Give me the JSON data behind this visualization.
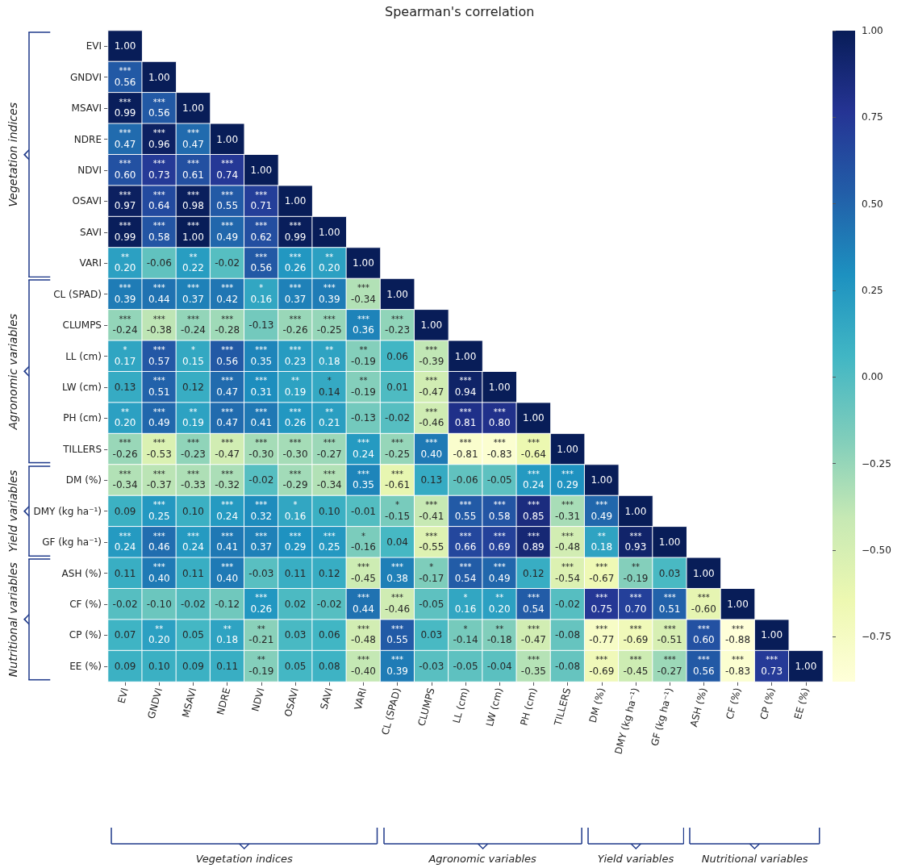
{
  "chart_data": {
    "type": "heatmap",
    "title": "Spearman's correlation",
    "categories": [
      "EVI",
      "GNDVI",
      "MSAVI",
      "NDRE",
      "NDVI",
      "OSAVI",
      "SAVI",
      "VARI",
      "CL (SPAD)",
      "CLUMPS",
      "LL (cm)",
      "LW (cm)",
      "PH (cm)",
      "TILLERS",
      "DM (%)",
      "DMY (kg ha⁻¹)",
      "GF (kg ha⁻¹)",
      "ASH (%)",
      "CF (%)",
      "CP (%)",
      "EE (%)"
    ],
    "y_categories": [
      "EVI",
      "GNDVI",
      "MSAVI",
      "NDRE",
      "NDVI",
      "OSAVI",
      "SAVI",
      "VARI",
      "CL (SPAD)",
      "CLUMPS",
      "LL (cm)",
      "LW (cm)",
      "PH (cm)",
      "TILLERS",
      "DM (%)",
      "DMY (kg ha⁻¹)",
      "GF (kg ha⁻¹)",
      "ASH (%)",
      "CF (%)",
      "CP (%)",
      "EE (%)"
    ],
    "cells": [
      [
        1.0,
        null,
        null,
        null,
        null,
        null,
        null,
        null,
        null,
        null,
        null,
        null,
        null,
        null,
        null,
        null,
        null,
        null,
        null,
        null,
        null
      ],
      [
        0.56,
        1.0,
        null,
        null,
        null,
        null,
        null,
        null,
        null,
        null,
        null,
        null,
        null,
        null,
        null,
        null,
        null,
        null,
        null,
        null,
        null
      ],
      [
        0.99,
        0.56,
        1.0,
        null,
        null,
        null,
        null,
        null,
        null,
        null,
        null,
        null,
        null,
        null,
        null,
        null,
        null,
        null,
        null,
        null,
        null
      ],
      [
        0.47,
        0.96,
        0.47,
        1.0,
        null,
        null,
        null,
        null,
        null,
        null,
        null,
        null,
        null,
        null,
        null,
        null,
        null,
        null,
        null,
        null,
        null
      ],
      [
        0.6,
        0.73,
        0.61,
        0.74,
        1.0,
        null,
        null,
        null,
        null,
        null,
        null,
        null,
        null,
        null,
        null,
        null,
        null,
        null,
        null,
        null,
        null
      ],
      [
        0.97,
        0.64,
        0.98,
        0.55,
        0.71,
        1.0,
        null,
        null,
        null,
        null,
        null,
        null,
        null,
        null,
        null,
        null,
        null,
        null,
        null,
        null,
        null
      ],
      [
        0.99,
        0.58,
        1.0,
        0.49,
        0.62,
        0.99,
        1.0,
        null,
        null,
        null,
        null,
        null,
        null,
        null,
        null,
        null,
        null,
        null,
        null,
        null,
        null
      ],
      [
        0.2,
        -0.06,
        0.22,
        -0.02,
        0.56,
        0.26,
        0.2,
        1.0,
        null,
        null,
        null,
        null,
        null,
        null,
        null,
        null,
        null,
        null,
        null,
        null,
        null
      ],
      [
        0.39,
        0.44,
        0.37,
        0.42,
        0.16,
        0.37,
        0.39,
        -0.34,
        1.0,
        null,
        null,
        null,
        null,
        null,
        null,
        null,
        null,
        null,
        null,
        null,
        null
      ],
      [
        -0.24,
        -0.38,
        -0.24,
        -0.28,
        -0.13,
        -0.26,
        -0.25,
        0.36,
        -0.23,
        1.0,
        null,
        null,
        null,
        null,
        null,
        null,
        null,
        null,
        null,
        null,
        null
      ],
      [
        0.17,
        0.57,
        0.15,
        0.56,
        0.35,
        0.23,
        0.18,
        -0.19,
        0.06,
        -0.39,
        1.0,
        null,
        null,
        null,
        null,
        null,
        null,
        null,
        null,
        null,
        null
      ],
      [
        0.13,
        0.51,
        0.12,
        0.47,
        0.31,
        0.19,
        0.14,
        -0.19,
        0.01,
        -0.47,
        0.94,
        1.0,
        null,
        null,
        null,
        null,
        null,
        null,
        null,
        null,
        null
      ],
      [
        0.2,
        0.49,
        0.19,
        0.47,
        0.41,
        0.26,
        0.21,
        -0.13,
        -0.02,
        -0.46,
        0.81,
        0.8,
        1.0,
        null,
        null,
        null,
        null,
        null,
        null,
        null,
        null
      ],
      [
        -0.26,
        -0.53,
        -0.23,
        -0.47,
        -0.3,
        -0.3,
        -0.27,
        0.24,
        -0.25,
        0.4,
        -0.81,
        -0.83,
        -0.64,
        1.0,
        null,
        null,
        null,
        null,
        null,
        null,
        null
      ],
      [
        -0.34,
        -0.37,
        -0.33,
        -0.32,
        -0.02,
        -0.29,
        -0.34,
        0.35,
        -0.61,
        0.13,
        -0.06,
        -0.05,
        0.24,
        0.29,
        1.0,
        null,
        null,
        null,
        null,
        null,
        null
      ],
      [
        0.09,
        0.25,
        0.1,
        0.24,
        0.32,
        0.16,
        0.1,
        -0.01,
        -0.15,
        -0.41,
        0.55,
        0.58,
        0.85,
        -0.31,
        0.49,
        1.0,
        null,
        null,
        null,
        null,
        null
      ],
      [
        0.24,
        0.46,
        0.24,
        0.41,
        0.37,
        0.29,
        0.25,
        -0.16,
        0.04,
        -0.55,
        0.66,
        0.69,
        0.89,
        -0.48,
        0.18,
        0.93,
        1.0,
        null,
        null,
        null,
        null
      ],
      [
        0.11,
        0.4,
        0.11,
        0.4,
        -0.03,
        0.11,
        0.12,
        -0.45,
        0.38,
        -0.17,
        0.54,
        0.49,
        0.12,
        -0.54,
        -0.67,
        -0.19,
        0.03,
        1.0,
        null,
        null,
        null
      ],
      [
        -0.02,
        -0.1,
        -0.02,
        -0.12,
        0.26,
        0.02,
        -0.02,
        0.44,
        -0.46,
        -0.05,
        0.16,
        0.2,
        0.54,
        -0.02,
        0.75,
        0.7,
        0.51,
        -0.6,
        1.0,
        null,
        null
      ],
      [
        0.07,
        0.2,
        0.05,
        0.18,
        -0.21,
        0.03,
        0.06,
        -0.48,
        0.55,
        0.03,
        -0.14,
        -0.18,
        -0.47,
        -0.08,
        -0.77,
        -0.69,
        -0.51,
        0.6,
        -0.88,
        1.0,
        null
      ],
      [
        0.09,
        0.1,
        0.09,
        0.11,
        -0.19,
        0.05,
        0.08,
        -0.4,
        0.39,
        -0.03,
        -0.05,
        -0.04,
        -0.35,
        -0.08,
        -0.69,
        -0.45,
        -0.27,
        0.56,
        -0.83,
        0.73,
        1.0
      ]
    ],
    "cell_labels": [
      [
        "1.00",
        null,
        null,
        null,
        null,
        null,
        null,
        null,
        null,
        null,
        null,
        null,
        null,
        null,
        null,
        null,
        null,
        null,
        null,
        null,
        null
      ],
      [
        "***\n0.56",
        "1.00",
        null,
        null,
        null,
        null,
        null,
        null,
        null,
        null,
        null,
        null,
        null,
        null,
        null,
        null,
        null,
        null,
        null,
        null,
        null
      ],
      [
        "***\n0.99",
        "***\n0.56",
        "1.00",
        null,
        null,
        null,
        null,
        null,
        null,
        null,
        null,
        null,
        null,
        null,
        null,
        null,
        null,
        null,
        null,
        null,
        null
      ],
      [
        "***\n0.47",
        "***\n0.96",
        "***\n0.47",
        "1.00",
        null,
        null,
        null,
        null,
        null,
        null,
        null,
        null,
        null,
        null,
        null,
        null,
        null,
        null,
        null,
        null,
        null
      ],
      [
        "***\n0.60",
        "***\n0.73",
        "***\n0.61",
        "***\n0.74",
        "1.00",
        null,
        null,
        null,
        null,
        null,
        null,
        null,
        null,
        null,
        null,
        null,
        null,
        null,
        null,
        null,
        null
      ],
      [
        "***\n0.97",
        "***\n0.64",
        "***\n0.98",
        "***\n0.55",
        "***\n0.71",
        "1.00",
        null,
        null,
        null,
        null,
        null,
        null,
        null,
        null,
        null,
        null,
        null,
        null,
        null,
        null,
        null
      ],
      [
        "***\n0.99",
        "***\n0.58",
        "***\n1.00",
        "***\n0.49",
        "***\n0.62",
        "***\n0.99",
        "1.00",
        null,
        null,
        null,
        null,
        null,
        null,
        null,
        null,
        null,
        null,
        null,
        null,
        null,
        null
      ],
      [
        "**\n0.20",
        "-0.06",
        "**\n0.22",
        "-0.02",
        "***\n0.56",
        "***\n0.26",
        "**\n0.20",
        "1.00",
        null,
        null,
        null,
        null,
        null,
        null,
        null,
        null,
        null,
        null,
        null,
        null,
        null
      ],
      [
        "***\n0.39",
        "***\n0.44",
        "***\n0.37",
        "***\n0.42",
        "*\n0.16",
        "***\n0.37",
        "***\n0.39",
        "***\n-0.34",
        "1.00",
        null,
        null,
        null,
        null,
        null,
        null,
        null,
        null,
        null,
        null,
        null,
        null
      ],
      [
        "***\n-0.24",
        "***\n-0.38",
        "***\n-0.24",
        "***\n-0.28",
        "-0.13",
        "***\n-0.26",
        "***\n-0.25",
        "***\n0.36",
        "***\n-0.23",
        "1.00",
        null,
        null,
        null,
        null,
        null,
        null,
        null,
        null,
        null,
        null,
        null
      ],
      [
        "*\n0.17",
        "***\n0.57",
        "*\n0.15",
        "***\n0.56",
        "***\n0.35",
        "***\n0.23",
        "**\n0.18",
        "**\n-0.19",
        "0.06",
        "***\n-0.39",
        "1.00",
        null,
        null,
        null,
        null,
        null,
        null,
        null,
        null,
        null,
        null
      ],
      [
        "0.13",
        "***\n0.51",
        "0.12",
        "***\n0.47",
        "***\n0.31",
        "**\n0.19",
        "*\n0.14",
        "**\n-0.19",
        "0.01",
        "***\n-0.47",
        "***\n0.94",
        "1.00",
        null,
        null,
        null,
        null,
        null,
        null,
        null,
        null,
        null
      ],
      [
        "**\n0.20",
        "***\n0.49",
        "**\n0.19",
        "***\n0.47",
        "***\n0.41",
        "***\n0.26",
        "**\n0.21",
        "-0.13",
        "-0.02",
        "***\n-0.46",
        "***\n0.81",
        "***\n0.80",
        "1.00",
        null,
        null,
        null,
        null,
        null,
        null,
        null,
        null
      ],
      [
        "***\n-0.26",
        "***\n-0.53",
        "***\n-0.23",
        "***\n-0.47",
        "***\n-0.30",
        "***\n-0.30",
        "***\n-0.27",
        "***\n0.24",
        "***\n-0.25",
        "***\n0.40",
        "***\n-0.81",
        "***\n-0.83",
        "***\n-0.64",
        "1.00",
        null,
        null,
        null,
        null,
        null,
        null,
        null
      ],
      [
        "***\n-0.34",
        "***\n-0.37",
        "***\n-0.33",
        "***\n-0.32",
        "-0.02",
        "***\n-0.29",
        "***\n-0.34",
        "***\n0.35",
        "***\n-0.61",
        "0.13",
        "-0.06",
        "-0.05",
        "***\n0.24",
        "***\n0.29",
        "1.00",
        null,
        null,
        null,
        null,
        null,
        null
      ],
      [
        "0.09",
        "***\n0.25",
        "0.10",
        "***\n0.24",
        "***\n0.32",
        "*\n0.16",
        "0.10",
        "-0.01",
        "*\n-0.15",
        "***\n-0.41",
        "***\n0.55",
        "***\n0.58",
        "***\n0.85",
        "***\n-0.31",
        "***\n0.49",
        "1.00",
        null,
        null,
        null,
        null,
        null
      ],
      [
        "***\n0.24",
        "***\n0.46",
        "***\n0.24",
        "***\n0.41",
        "***\n0.37",
        "***\n0.29",
        "***\n0.25",
        "*\n-0.16",
        "0.04",
        "***\n-0.55",
        "***\n0.66",
        "***\n0.69",
        "***\n0.89",
        "***\n-0.48",
        "**\n0.18",
        "***\n0.93",
        "1.00",
        null,
        null,
        null,
        null
      ],
      [
        "0.11",
        "***\n0.40",
        "0.11",
        "***\n0.40",
        "-0.03",
        "0.11",
        "0.12",
        "***\n-0.45",
        "***\n0.38",
        "*\n-0.17",
        "***\n0.54",
        "***\n0.49",
        "0.12",
        "***\n-0.54",
        "***\n-0.67",
        "**\n-0.19",
        "0.03",
        "1.00",
        null,
        null,
        null
      ],
      [
        "-0.02",
        "-0.10",
        "-0.02",
        "-0.12",
        "***\n0.26",
        "0.02",
        "-0.02",
        "***\n0.44",
        "***\n-0.46",
        "-0.05",
        "*\n0.16",
        "**\n0.20",
        "***\n0.54",
        "-0.02",
        "***\n0.75",
        "***\n0.70",
        "***\n0.51",
        "***\n-0.60",
        "1.00",
        null,
        null
      ],
      [
        "0.07",
        "**\n0.20",
        "0.05",
        "**\n0.18",
        "**\n-0.21",
        "0.03",
        "0.06",
        "***\n-0.48",
        "***\n0.55",
        "0.03",
        "*\n-0.14",
        "**\n-0.18",
        "***\n-0.47",
        "-0.08",
        "***\n-0.77",
        "***\n-0.69",
        "***\n-0.51",
        "***\n0.60",
        "***\n-0.88",
        "1.00",
        null
      ],
      [
        "0.09",
        "0.10",
        "0.09",
        "0.11",
        "**\n-0.19",
        "0.05",
        "0.08",
        "***\n-0.40",
        "***\n0.39",
        "-0.03",
        "-0.05",
        "-0.04",
        "***\n-0.35",
        "-0.08",
        "***\n-0.69",
        "***\n-0.45",
        "***\n-0.27",
        "***\n0.56",
        "***\n-0.83",
        "***\n0.73",
        "1.00"
      ]
    ],
    "clim": [
      -0.88,
      1.0
    ],
    "cticks": [
      {
        "value": -0.75,
        "label": "−0.75"
      },
      {
        "value": -0.5,
        "label": "−0.50"
      },
      {
        "value": -0.25,
        "label": "−0.25"
      },
      {
        "value": 0,
        "label": "0.00"
      },
      {
        "value": 0.25,
        "label": "0.25"
      },
      {
        "value": 0.5,
        "label": "0.50"
      },
      {
        "value": 0.75,
        "label": "0.75"
      },
      {
        "value": 1.0,
        "label": "1.00"
      }
    ],
    "annotations": [
      "Vegetation indices",
      "Agronomic variables",
      "Yield variables",
      "Nutritional variables"
    ]
  }
}
